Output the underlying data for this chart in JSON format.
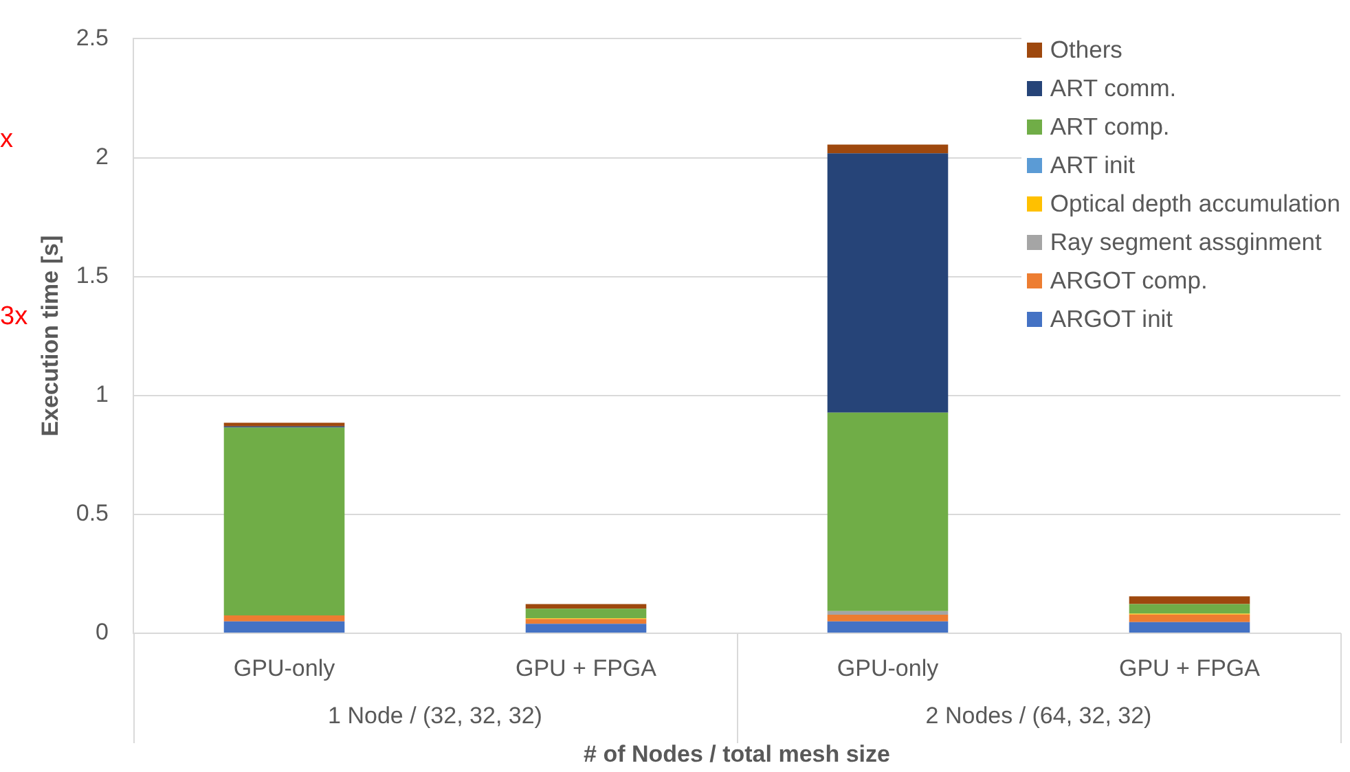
{
  "chart_data": {
    "type": "bar",
    "stacked": true,
    "ylabel": "Execution time [s]",
    "xlabel": "# of Nodes / total mesh size",
    "categories": [
      "GPU-only",
      "GPU + FPGA",
      "GPU-only",
      "GPU + FPGA"
    ],
    "annotations": [
      "1 Node / (32, 32, 32)",
      "2 Nodes / (64, 32, 32)",
      "x",
      "3x"
    ],
    "series": [
      {
        "name": "ARGOT init",
        "color": "#4472c4",
        "values": [
          0.05,
          0.04,
          0.05,
          0.047
        ]
      },
      {
        "name": "ARGOT comp.",
        "color": "#ed7d31",
        "values": [
          0.025,
          0.02,
          0.028,
          0.032
        ]
      },
      {
        "name": "Ray segment assginment",
        "color": "#a5a5a5",
        "values": [
          0,
          null,
          0.015,
          null
        ]
      },
      {
        "name": "Optical depth accumulation",
        "color": "#ffc000",
        "values": [
          0,
          0.003,
          0,
          0.003
        ]
      },
      {
        "name": "ART init",
        "color": "#5b9bd5",
        "values": [
          0,
          0,
          0,
          0
        ]
      },
      {
        "name": "ART comp.",
        "color": "#70ad47",
        "values": [
          0.79,
          0.04,
          0.835,
          0.041
        ]
      },
      {
        "name": "ART comm.",
        "color": "#264478",
        "values": [
          0.005,
          0,
          1.09,
          0
        ]
      },
      {
        "name": "Others",
        "color": "#9e480e",
        "values": [
          0.015,
          0.02,
          0.037,
          0.032
        ]
      }
    ],
    "ylim": [
      0,
      2.5
    ],
    "yticks": [
      0,
      0.5,
      1,
      1.5,
      2,
      2.5
    ],
    "grid": "y",
    "legend": "top right"
  }
}
